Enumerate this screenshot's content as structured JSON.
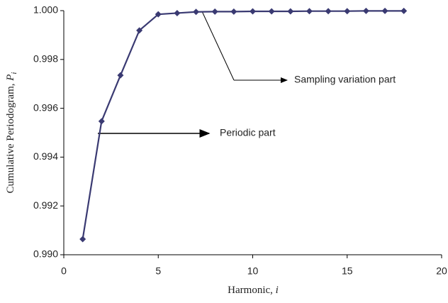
{
  "chart_data": {
    "type": "line",
    "x_label": [
      "Harmonic, ",
      "i"
    ],
    "y_label": [
      "Cumulative Periodogram, ",
      "P",
      "i"
    ],
    "x": [
      1,
      2,
      3,
      4,
      5,
      6,
      7,
      8,
      9,
      10,
      11,
      12,
      13,
      14,
      15,
      16,
      17,
      18
    ],
    "series": [
      {
        "color": "#3a3a72",
        "values": [
          0.99064,
          0.99547,
          0.99735,
          0.99919,
          0.99985,
          0.9999,
          0.99995,
          0.99996,
          0.99996,
          0.99997,
          0.99997,
          0.99997,
          0.99998,
          0.99998,
          0.99998,
          0.99999,
          0.99999,
          0.99999
        ]
      }
    ],
    "xlim": [
      0,
      20
    ],
    "xticks": [
      0,
      5,
      10,
      15,
      20
    ],
    "ylim": [
      0.99,
      1.0
    ],
    "yticks": [
      {
        "value": 0.99,
        "label": "0.990"
      },
      {
        "value": 0.992,
        "label": "0.992"
      },
      {
        "value": 0.994,
        "label": "0.994"
      },
      {
        "value": 0.996,
        "label": "0.996"
      },
      {
        "value": 0.998,
        "label": "0.998"
      },
      {
        "value": 1.0,
        "label": "1.000"
      }
    ],
    "annotations": [
      "Sampling variation part",
      "Periodic part"
    ],
    "grid": false
  }
}
